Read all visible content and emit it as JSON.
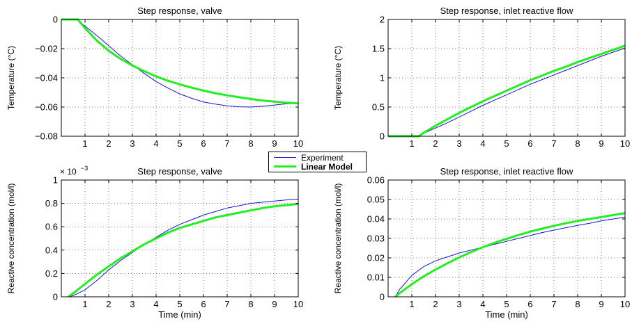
{
  "colors": {
    "experiment": "#1414c8",
    "model": "#22ee22",
    "axis": "#000000"
  },
  "legend": {
    "placement": "center",
    "entries": [
      {
        "name": "Experiment",
        "color": "#1414c8"
      },
      {
        "name": "Linear Model",
        "color": "#22ee22"
      }
    ]
  },
  "chart_data": [
    {
      "type": "line",
      "title": "Step response, valve",
      "xlabel": "",
      "ylabel": "Temperature (°C)",
      "xlim": [
        0,
        10
      ],
      "ylim": [
        -0.08,
        0
      ],
      "xticks": [
        "1",
        "2",
        "3",
        "4",
        "5",
        "6",
        "7",
        "8",
        "9",
        "10"
      ],
      "yticks": [
        "0",
        "−0.02",
        "−0.04",
        "−0.06",
        "−0.08"
      ],
      "ytick_values": [
        0,
        -0.02,
        -0.04,
        -0.06,
        -0.08
      ],
      "exponent": "",
      "grid": true,
      "series": [
        {
          "name": "Experiment",
          "color": "#1414c8",
          "width": 1,
          "x": [
            0,
            0.65,
            1.0,
            1.5,
            2.0,
            2.5,
            3.0,
            3.5,
            4.0,
            4.5,
            5.0,
            5.5,
            6.0,
            6.5,
            7.0,
            7.5,
            8.0,
            8.5,
            9.0,
            9.5,
            10.0
          ],
          "y": [
            0,
            0,
            -0.0045,
            -0.011,
            -0.018,
            -0.025,
            -0.031,
            -0.037,
            -0.0425,
            -0.047,
            -0.051,
            -0.054,
            -0.0565,
            -0.058,
            -0.0592,
            -0.0598,
            -0.06,
            -0.0595,
            -0.0586,
            -0.0578,
            -0.0575
          ]
        },
        {
          "name": "Linear Model",
          "color": "#22ee22",
          "width": 3,
          "x": [
            0,
            0.7,
            1.0,
            1.5,
            2.0,
            2.5,
            3.0,
            3.5,
            4.0,
            4.5,
            5.0,
            5.5,
            6.0,
            6.5,
            7.0,
            7.5,
            8.0,
            8.5,
            9.0,
            9.5,
            10.0
          ],
          "y": [
            0,
            0,
            -0.006,
            -0.0145,
            -0.0215,
            -0.027,
            -0.0315,
            -0.0355,
            -0.039,
            -0.042,
            -0.0445,
            -0.0467,
            -0.0487,
            -0.0505,
            -0.052,
            -0.0533,
            -0.0545,
            -0.0555,
            -0.0563,
            -0.057,
            -0.0575
          ]
        }
      ]
    },
    {
      "type": "line",
      "title": "Step response, inlet reactive flow",
      "xlabel": "",
      "ylabel": "Temperature (°C)",
      "xlim": [
        0,
        10
      ],
      "ylim": [
        0,
        2
      ],
      "xticks": [
        "1",
        "2",
        "3",
        "4",
        "5",
        "6",
        "7",
        "8",
        "9",
        "10"
      ],
      "yticks": [
        "2",
        "1.5",
        "1",
        "0.5",
        "0"
      ],
      "ytick_values": [
        2,
        1.5,
        1,
        0.5,
        0
      ],
      "exponent": "",
      "grid": true,
      "series": [
        {
          "name": "Experiment",
          "color": "#1414c8",
          "width": 1,
          "x": [
            0,
            1.2,
            1.5,
            2.0,
            2.5,
            3.0,
            3.5,
            4.0,
            4.5,
            5.0,
            5.5,
            6.0,
            6.5,
            7.0,
            7.5,
            8.0,
            8.5,
            9.0,
            9.5,
            10.0
          ],
          "y": [
            0,
            0,
            0.05,
            0.14,
            0.23,
            0.33,
            0.43,
            0.53,
            0.62,
            0.71,
            0.8,
            0.89,
            0.97,
            1.05,
            1.13,
            1.21,
            1.29,
            1.37,
            1.44,
            1.51
          ]
        },
        {
          "name": "Linear Model",
          "color": "#22ee22",
          "width": 3,
          "x": [
            0,
            1.3,
            1.5,
            2.0,
            2.5,
            3.0,
            3.5,
            4.0,
            4.5,
            5.0,
            5.5,
            6.0,
            6.5,
            7.0,
            7.5,
            8.0,
            8.5,
            9.0,
            9.5,
            10.0
          ],
          "y": [
            0,
            0,
            0.06,
            0.18,
            0.29,
            0.4,
            0.5,
            0.6,
            0.69,
            0.78,
            0.87,
            0.96,
            1.04,
            1.12,
            1.19,
            1.27,
            1.34,
            1.41,
            1.48,
            1.55
          ]
        }
      ]
    },
    {
      "type": "line",
      "title": "Step response, valve",
      "xlabel": "Time (min)",
      "ylabel": "Reactive concentration (mol/l)",
      "xlim": [
        0,
        10
      ],
      "ylim": [
        0,
        1
      ],
      "xticks": [
        "1",
        "2",
        "3",
        "4",
        "5",
        "6",
        "7",
        "8",
        "9",
        "10"
      ],
      "yticks": [
        "1",
        "0.8",
        "0.6",
        "0.4",
        "0.2",
        "0"
      ],
      "ytick_values": [
        1,
        0.8,
        0.6,
        0.4,
        0.2,
        0
      ],
      "exponent": "× 10",
      "exponent_power": "−3",
      "grid": true,
      "series": [
        {
          "name": "Experiment",
          "color": "#1414c8",
          "width": 1,
          "x": [
            0.3,
            0.5,
            1.0,
            1.5,
            2.0,
            2.5,
            3.0,
            3.5,
            4.0,
            4.5,
            5.0,
            5.5,
            6.0,
            6.5,
            7.0,
            7.5,
            8.0,
            8.5,
            9.0,
            9.5,
            10.0
          ],
          "y": [
            0,
            0.01,
            0.06,
            0.14,
            0.23,
            0.31,
            0.38,
            0.45,
            0.51,
            0.57,
            0.62,
            0.66,
            0.7,
            0.73,
            0.76,
            0.78,
            0.8,
            0.81,
            0.82,
            0.83,
            0.835
          ]
        },
        {
          "name": "Linear Model",
          "color": "#22ee22",
          "width": 3,
          "x": [
            0.3,
            0.5,
            1.0,
            1.5,
            2.0,
            2.5,
            3.0,
            3.5,
            4.0,
            4.5,
            5.0,
            5.5,
            6.0,
            6.5,
            7.0,
            7.5,
            8.0,
            8.5,
            9.0,
            9.5,
            10.0
          ],
          "y": [
            0,
            0.03,
            0.11,
            0.19,
            0.26,
            0.33,
            0.39,
            0.45,
            0.5,
            0.55,
            0.59,
            0.62,
            0.65,
            0.68,
            0.7,
            0.72,
            0.74,
            0.76,
            0.775,
            0.785,
            0.795
          ]
        }
      ]
    },
    {
      "type": "line",
      "title": "Step response, inlet reactive flow",
      "xlabel": "Time (min)",
      "ylabel": "Reactive concentration (mol/l)",
      "xlim": [
        0,
        10
      ],
      "ylim": [
        0,
        0.06
      ],
      "xticks": [
        "1",
        "2",
        "3",
        "4",
        "5",
        "6",
        "7",
        "8",
        "9",
        "10"
      ],
      "yticks": [
        "0.06",
        "0.05",
        "0.04",
        "0.03",
        "0.02",
        "0.01",
        "0"
      ],
      "ytick_values": [
        0.06,
        0.05,
        0.04,
        0.03,
        0.02,
        0.01,
        0
      ],
      "exponent": "",
      "grid": true,
      "series": [
        {
          "name": "Experiment",
          "color": "#1414c8",
          "width": 1,
          "x": [
            0.3,
            0.5,
            1.0,
            1.5,
            2.0,
            2.5,
            3.0,
            3.5,
            4.0,
            4.5,
            5.0,
            5.5,
            6.0,
            6.5,
            7.0,
            7.5,
            8.0,
            8.5,
            9.0,
            9.5,
            10.0
          ],
          "y": [
            0,
            0.004,
            0.011,
            0.0155,
            0.0185,
            0.0205,
            0.0225,
            0.024,
            0.0255,
            0.027,
            0.0285,
            0.03,
            0.0315,
            0.033,
            0.0343,
            0.0355,
            0.0367,
            0.0378,
            0.039,
            0.04,
            0.041
          ]
        },
        {
          "name": "Linear Model",
          "color": "#22ee22",
          "width": 3,
          "x": [
            0.3,
            0.5,
            1.0,
            1.5,
            2.0,
            2.5,
            3.0,
            3.5,
            4.0,
            4.5,
            5.0,
            5.5,
            6.0,
            6.5,
            7.0,
            7.5,
            8.0,
            8.5,
            9.0,
            9.5,
            10.0
          ],
          "y": [
            0,
            0.002,
            0.0065,
            0.0105,
            0.014,
            0.0172,
            0.0202,
            0.023,
            0.0255,
            0.0278,
            0.0298,
            0.0317,
            0.0335,
            0.035,
            0.0365,
            0.0378,
            0.039,
            0.04,
            0.041,
            0.042,
            0.043
          ]
        }
      ]
    }
  ]
}
